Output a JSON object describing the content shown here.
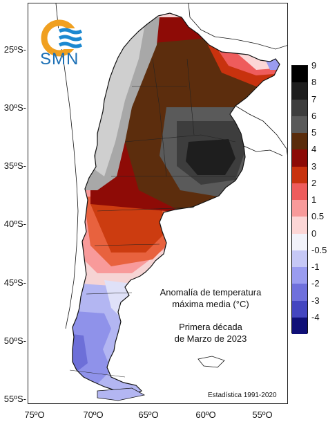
{
  "logo": {
    "text": "SMN",
    "icon": "smn-logo-icon",
    "colors": {
      "orange": "#f0a020",
      "blue": "#1b88d0"
    }
  },
  "title_lines": [
    "Anomalía de temperatura",
    "máxima media (°C)"
  ],
  "period_lines": [
    "Primera década",
    "de Marzo de 2023"
  ],
  "footer_note": "Estadística 1991-2020",
  "latitude_labels": [
    "25ºS-",
    "30ºS-",
    "35ºS-",
    "40ºS-",
    "45ºS-",
    "50ºS-",
    "55ºS-"
  ],
  "longitude_labels": [
    "75ºO",
    "70ºO",
    "65ºO",
    "60ºO",
    "55ºO"
  ],
  "legend": {
    "labels": [
      "9",
      "8",
      "7",
      "6",
      "5",
      "4",
      "3",
      "2",
      "1",
      "0.5",
      "0",
      "-0.5",
      "-1",
      "-2",
      "-3",
      "-4"
    ],
    "colors": [
      "#000000",
      "#1e1e1e",
      "#3d3d3d",
      "#5a5a5a",
      "#5a2c0c",
      "#8c0a06",
      "#c8320e",
      "#ee5c5c",
      "#f89a9a",
      "#fcd6d6",
      "#f2f2fa",
      "#c6c8f6",
      "#9a9cf0",
      "#6f70dc",
      "#4446c0",
      "#101077"
    ]
  }
}
